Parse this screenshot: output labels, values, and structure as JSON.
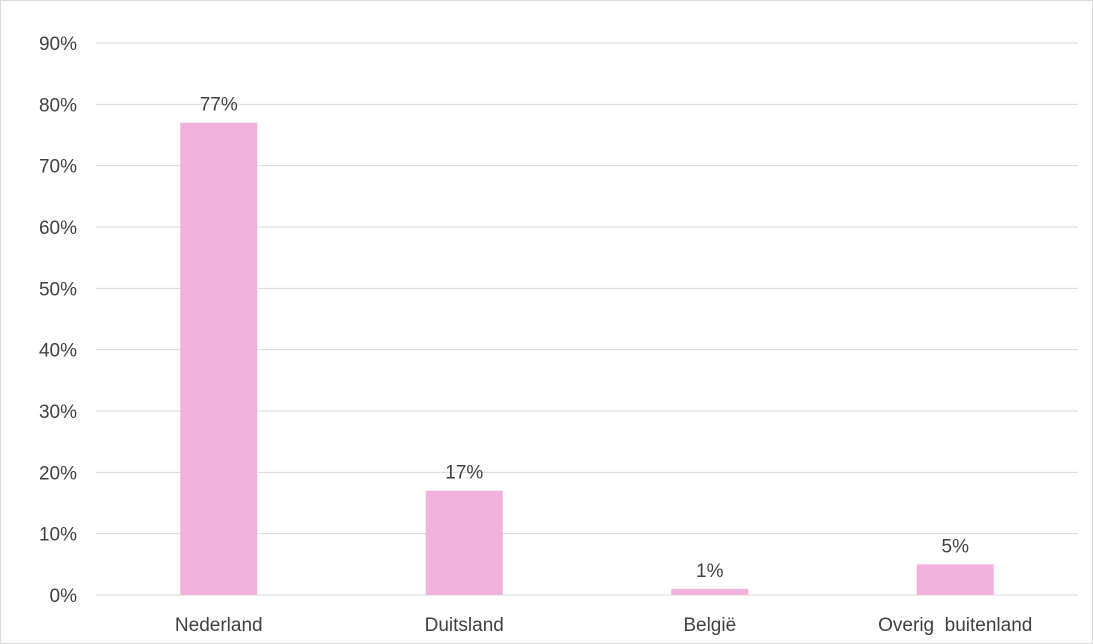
{
  "chart_data": {
    "type": "bar",
    "categories": [
      "Nederland",
      "Duitsland",
      "België",
      "Overig  buitenland"
    ],
    "values": [
      77,
      17,
      1,
      5
    ],
    "data_labels": [
      "77%",
      "17%",
      "1%",
      "5%"
    ],
    "y_ticks": [
      "0%",
      "10%",
      "20%",
      "30%",
      "40%",
      "50%",
      "60%",
      "70%",
      "80%",
      "90%"
    ],
    "ylim": [
      0,
      90
    ],
    "title": "",
    "xlabel": "",
    "ylabel": "",
    "grid": true,
    "legend": "none",
    "bar_color": "#f0b2dd",
    "grid_color": "#d9d9d9"
  }
}
